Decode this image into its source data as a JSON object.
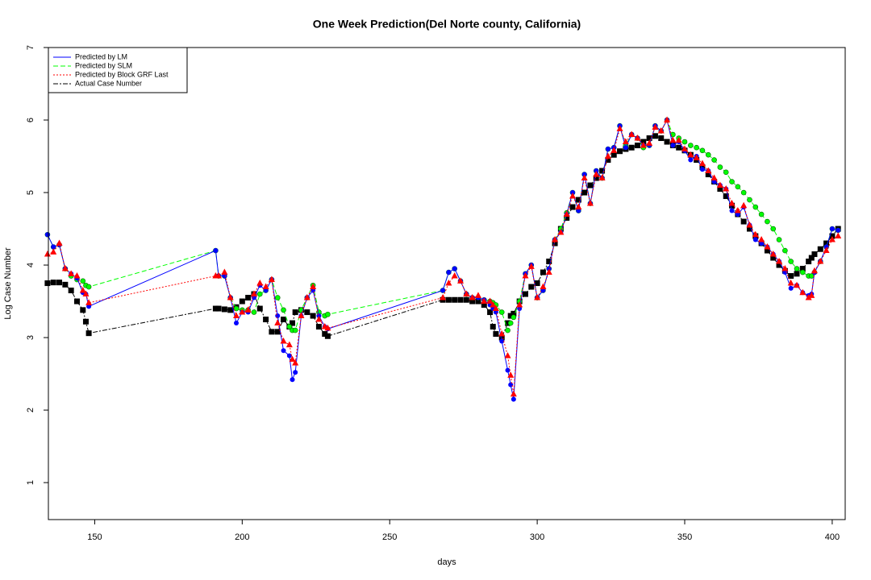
{
  "chart_data": {
    "type": "line",
    "title": "One Week Prediction(Del Norte county, California)",
    "x_label": "days",
    "y_label": "Log Case Number",
    "xlim": [
      134.3,
      404.4
    ],
    "ylim": [
      0.49,
      7
    ],
    "xticks": [
      150,
      200,
      250,
      300,
      350,
      400
    ],
    "yticks": [
      1,
      2,
      3,
      4,
      5,
      6,
      7
    ],
    "legend_position": "top-left",
    "x": [
      134,
      136,
      138,
      140,
      142,
      144,
      146,
      147,
      148,
      191,
      192,
      194,
      196,
      198,
      200,
      202,
      204,
      206,
      208,
      210,
      212,
      214,
      216,
      217,
      218,
      220,
      222,
      224,
      226,
      228,
      229,
      268,
      270,
      272,
      274,
      276,
      278,
      280,
      282,
      284,
      285,
      286,
      288,
      290,
      291,
      292,
      294,
      296,
      298,
      300,
      302,
      304,
      306,
      308,
      310,
      312,
      314,
      316,
      318,
      320,
      322,
      324,
      326,
      328,
      330,
      332,
      334,
      336,
      338,
      340,
      342,
      344,
      346,
      348,
      350,
      352,
      354,
      356,
      358,
      360,
      362,
      364,
      366,
      368,
      370,
      372,
      374,
      376,
      378,
      380,
      382,
      384,
      386,
      388,
      390,
      392,
      393,
      394,
      396,
      398,
      400,
      402
    ],
    "series": [
      {
        "name": "Predicted by LM",
        "color": "#0000ff",
        "dash": "solid",
        "marker": "circle",
        "values": [
          4.42,
          4.25,
          4.28,
          3.95,
          3.88,
          3.82,
          3.62,
          3.6,
          3.43,
          4.2,
          3.85,
          3.85,
          3.55,
          3.2,
          3.35,
          3.35,
          3.55,
          3.72,
          3.65,
          3.8,
          3.3,
          2.82,
          2.75,
          2.42,
          2.52,
          3.3,
          3.55,
          3.65,
          3.3,
          3.15,
          3.12,
          3.65,
          3.9,
          3.95,
          3.78,
          3.6,
          3.55,
          3.55,
          3.52,
          3.45,
          3.4,
          3.35,
          2.95,
          2.55,
          2.35,
          2.15,
          3.4,
          3.88,
          4.0,
          3.55,
          3.65,
          3.95,
          4.35,
          4.45,
          4.7,
          5.0,
          4.75,
          5.25,
          4.85,
          5.3,
          5.2,
          5.6,
          5.62,
          5.92,
          5.62,
          5.8,
          5.75,
          5.65,
          5.65,
          5.92,
          5.85,
          6.0,
          5.65,
          5.7,
          5.58,
          5.45,
          5.5,
          5.32,
          5.3,
          5.15,
          5.1,
          5.05,
          4.75,
          4.7,
          4.8,
          4.55,
          4.35,
          4.3,
          4.25,
          4.15,
          4.05,
          3.9,
          3.68,
          3.72,
          3.62,
          3.58,
          3.6,
          3.9,
          4.05,
          4.25,
          4.5,
          4.48
        ]
      },
      {
        "name": "Predicted by SLM",
        "color": "#00ff00",
        "dash": "dashed",
        "marker": "circle",
        "values": [
          4.42,
          4.25,
          4.28,
          3.95,
          3.85,
          3.8,
          3.78,
          3.72,
          3.7,
          4.2,
          3.85,
          3.85,
          3.55,
          3.4,
          3.38,
          3.38,
          3.35,
          3.6,
          3.65,
          3.8,
          3.55,
          3.38,
          3.15,
          3.1,
          3.1,
          3.38,
          3.55,
          3.72,
          3.35,
          3.3,
          3.32,
          3.65,
          3.9,
          3.95,
          3.78,
          3.6,
          3.55,
          3.55,
          3.52,
          3.5,
          3.48,
          3.45,
          3.35,
          3.1,
          3.2,
          3.28,
          3.5,
          3.88,
          4.0,
          3.55,
          3.65,
          3.95,
          4.35,
          4.5,
          4.72,
          5.0,
          4.75,
          5.25,
          4.85,
          5.3,
          5.2,
          5.6,
          5.62,
          5.92,
          5.65,
          5.8,
          5.75,
          5.62,
          5.65,
          5.92,
          5.85,
          6.0,
          5.8,
          5.75,
          5.7,
          5.65,
          5.62,
          5.58,
          5.52,
          5.45,
          5.35,
          5.28,
          5.15,
          5.08,
          5.0,
          4.9,
          4.8,
          4.7,
          4.6,
          4.5,
          4.35,
          4.2,
          4.05,
          3.95,
          3.9,
          3.85,
          3.85,
          3.9,
          4.05,
          4.25,
          4.5,
          4.48
        ]
      },
      {
        "name": "Predicted by Block GRF Last",
        "color": "#ff0000",
        "dash": "dotted",
        "marker": "triangle",
        "values": [
          4.15,
          4.18,
          4.3,
          3.95,
          3.88,
          3.85,
          3.65,
          3.6,
          3.48,
          3.85,
          3.85,
          3.9,
          3.55,
          3.3,
          3.35,
          3.38,
          3.6,
          3.75,
          3.7,
          3.8,
          3.2,
          2.95,
          2.9,
          2.7,
          2.65,
          3.3,
          3.55,
          3.7,
          3.25,
          3.15,
          3.13,
          3.55,
          3.75,
          3.85,
          3.78,
          3.6,
          3.55,
          3.58,
          3.5,
          3.5,
          3.45,
          3.4,
          3.05,
          2.75,
          2.48,
          2.22,
          3.45,
          3.85,
          3.98,
          3.55,
          3.7,
          3.9,
          4.35,
          4.45,
          4.7,
          4.95,
          4.8,
          5.2,
          4.85,
          5.25,
          5.2,
          5.5,
          5.58,
          5.88,
          5.7,
          5.8,
          5.75,
          5.65,
          5.68,
          5.9,
          5.85,
          6.0,
          5.72,
          5.72,
          5.6,
          5.52,
          5.48,
          5.4,
          5.3,
          5.2,
          5.1,
          5.05,
          4.85,
          4.75,
          4.82,
          4.55,
          4.42,
          4.35,
          4.25,
          4.15,
          4.05,
          3.95,
          3.75,
          3.72,
          3.62,
          3.55,
          3.58,
          3.92,
          4.05,
          4.2,
          4.35,
          4.4
        ]
      },
      {
        "name": "Actual Case Number",
        "color": "#000000",
        "dash": "dashdot",
        "marker": "square",
        "values": [
          3.75,
          3.76,
          3.76,
          3.73,
          3.65,
          3.5,
          3.38,
          3.22,
          3.06,
          3.4,
          3.4,
          3.39,
          3.38,
          3.42,
          3.5,
          3.55,
          3.6,
          3.4,
          3.25,
          3.08,
          3.08,
          3.25,
          3.15,
          3.2,
          3.35,
          3.38,
          3.35,
          3.3,
          3.15,
          3.05,
          3.02,
          3.52,
          3.52,
          3.52,
          3.52,
          3.52,
          3.5,
          3.5,
          3.45,
          3.35,
          3.15,
          3.05,
          3.0,
          3.2,
          3.3,
          3.33,
          3.5,
          3.6,
          3.7,
          3.75,
          3.9,
          4.05,
          4.3,
          4.5,
          4.65,
          4.8,
          4.9,
          5.0,
          5.1,
          5.2,
          5.3,
          5.45,
          5.52,
          5.57,
          5.6,
          5.62,
          5.65,
          5.7,
          5.75,
          5.78,
          5.75,
          5.7,
          5.65,
          5.62,
          5.58,
          5.52,
          5.45,
          5.35,
          5.25,
          5.15,
          5.05,
          4.95,
          4.82,
          4.7,
          4.6,
          4.5,
          4.4,
          4.3,
          4.2,
          4.1,
          4.0,
          3.92,
          3.85,
          3.88,
          3.95,
          4.05,
          4.1,
          4.15,
          4.22,
          4.3,
          4.4,
          4.5
        ]
      }
    ]
  }
}
